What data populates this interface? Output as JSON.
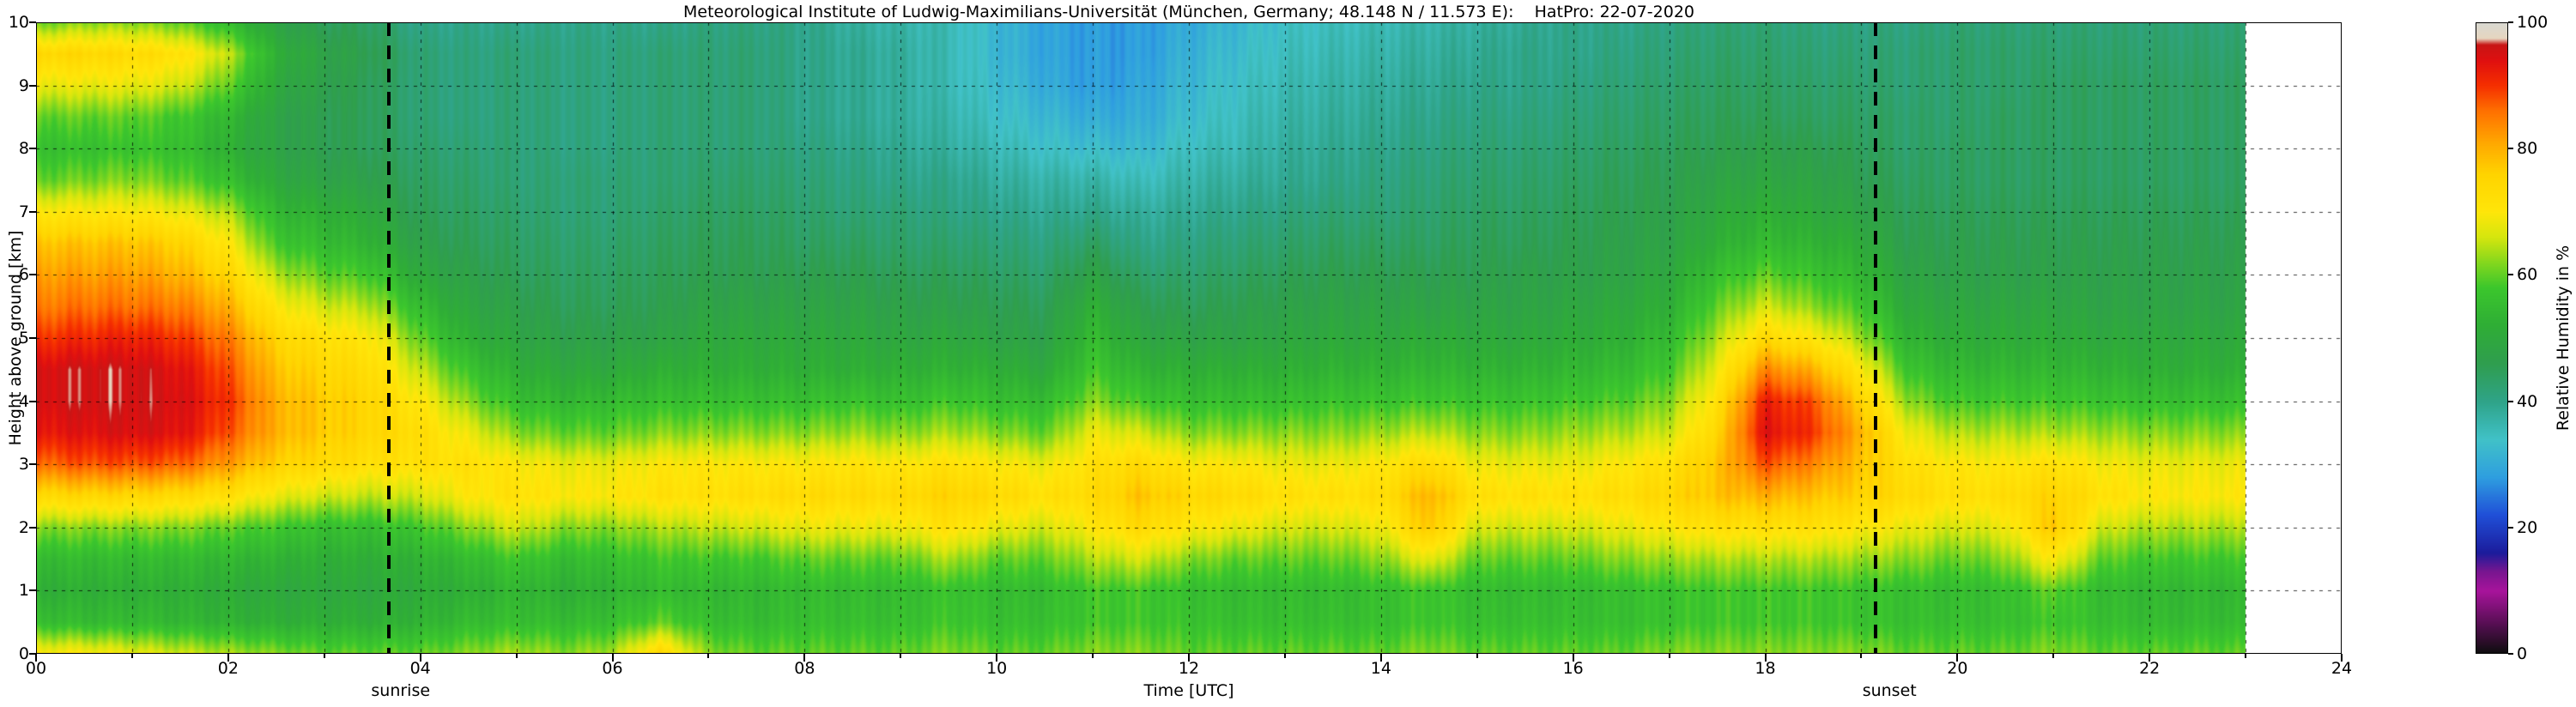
{
  "title": "Meteorological Institute of Ludwig-Maximilians-Universität (München, Germany; 48.148 N / 11.573 E):    HatPro: 22-07-2020",
  "chart_data": {
    "type": "heatmap",
    "title": "Meteorological Institute of Ludwig-Maximilians-Universität (München, Germany; 48.148 N / 11.573 E):    HatPro: 22-07-2020",
    "xlabel": "Time [UTC]",
    "ylabel": "Height above ground [km]",
    "colorbar_label": "Relative Humidity in %",
    "xlim": [
      0,
      24
    ],
    "ylim": [
      0,
      10
    ],
    "grid": {
      "x_step_hours": 1,
      "y_step_km": 1,
      "style": "dashed"
    },
    "x_tick_values": [
      0,
      2,
      4,
      6,
      8,
      10,
      12,
      14,
      16,
      18,
      20,
      22,
      24
    ],
    "x_tick_labels": [
      "00",
      "02",
      "04",
      "06",
      "08",
      "10",
      "12",
      "14",
      "16",
      "18",
      "20",
      "22",
      "24"
    ],
    "y_tick_values": [
      0,
      1,
      2,
      3,
      4,
      5,
      6,
      7,
      8,
      9,
      10
    ],
    "y_tick_labels": [
      "0",
      "1",
      "2",
      "3",
      "4",
      "5",
      "6",
      "7",
      "8",
      "9",
      "10"
    ],
    "colorbar_tick_values": [
      0,
      20,
      40,
      60,
      80,
      100
    ],
    "colorbar_tick_labels": [
      "0",
      "20",
      "40",
      "60",
      "80",
      "100"
    ],
    "annotations": [
      {
        "label": "sunrise",
        "x": 3.67
      },
      {
        "label": "sunset",
        "x": 19.15
      }
    ],
    "data_time_start": 0,
    "data_time_end": 23,
    "time_step_hours": 0.5,
    "height_step_km": 0.5,
    "value_unit": "percent_relative_humidity",
    "colormap": [
      [
        0.0,
        "#0d0d0d"
      ],
      [
        0.05,
        "#5a0f56"
      ],
      [
        0.1,
        "#a8149c"
      ],
      [
        0.13,
        "#7a1690"
      ],
      [
        0.16,
        "#1c1c9c"
      ],
      [
        0.22,
        "#2050d8"
      ],
      [
        0.28,
        "#2f9fe0"
      ],
      [
        0.34,
        "#41c2c8"
      ],
      [
        0.4,
        "#2fa489"
      ],
      [
        0.46,
        "#2f9e4f"
      ],
      [
        0.52,
        "#2fae36"
      ],
      [
        0.58,
        "#3cc72d"
      ],
      [
        0.62,
        "#85d81e"
      ],
      [
        0.66,
        "#d6e60e"
      ],
      [
        0.7,
        "#ffe60a"
      ],
      [
        0.76,
        "#ffd400"
      ],
      [
        0.81,
        "#ffa800"
      ],
      [
        0.86,
        "#ff7100"
      ],
      [
        0.9,
        "#f63000"
      ],
      [
        0.94,
        "#e01010"
      ],
      [
        0.965,
        "#c81616"
      ],
      [
        0.975,
        "#e7d6c0"
      ],
      [
        1.0,
        "#d9d9d2"
      ]
    ],
    "values_note": "columns every 0.5 h from 00:00 to 23:00 UTC; each column lists RH% at heights 0..10 km in 0.5 km steps (bottom to top)",
    "values": [
      [
        70,
        56,
        52,
        55,
        62,
        74,
        86,
        93,
        95,
        95,
        90,
        85,
        82,
        78,
        70,
        60,
        56,
        60,
        68,
        75,
        60
      ],
      [
        70,
        55,
        52,
        55,
        62,
        75,
        88,
        94,
        96,
        96,
        91,
        86,
        82,
        78,
        70,
        61,
        56,
        60,
        68,
        75,
        62
      ],
      [
        68,
        55,
        52,
        55,
        62,
        75,
        88,
        95,
        96,
        96,
        92,
        86,
        82,
        78,
        70,
        62,
        57,
        60,
        68,
        74,
        62
      ],
      [
        66,
        54,
        52,
        55,
        62,
        74,
        87,
        94,
        95,
        94,
        90,
        85,
        80,
        76,
        68,
        60,
        56,
        58,
        66,
        72,
        60
      ],
      [
        64,
        53,
        51,
        54,
        60,
        72,
        82,
        88,
        90,
        88,
        85,
        80,
        75,
        70,
        64,
        56,
        52,
        54,
        60,
        65,
        55
      ],
      [
        62,
        52,
        50,
        53,
        58,
        68,
        76,
        80,
        80,
        78,
        75,
        70,
        64,
        58,
        54,
        50,
        48,
        48,
        50,
        52,
        48
      ],
      [
        60,
        52,
        50,
        52,
        56,
        66,
        74,
        77,
        77,
        75,
        72,
        66,
        60,
        55,
        52,
        48,
        46,
        46,
        47,
        48,
        45
      ],
      [
        60,
        52,
        50,
        52,
        56,
        65,
        72,
        75,
        75,
        73,
        70,
        64,
        58,
        53,
        50,
        47,
        45,
        45,
        45,
        46,
        44
      ],
      [
        60,
        53,
        51,
        53,
        58,
        66,
        72,
        73,
        70,
        65,
        60,
        55,
        50,
        47,
        45,
        44,
        43,
        42,
        42,
        42,
        40
      ],
      [
        62,
        55,
        52,
        55,
        62,
        70,
        72,
        68,
        62,
        57,
        52,
        49,
        47,
        45,
        44,
        43,
        42,
        41,
        41,
        41,
        40
      ],
      [
        64,
        56,
        54,
        58,
        66,
        72,
        70,
        62,
        56,
        52,
        49,
        47,
        45,
        44,
        43,
        42,
        42,
        42,
        42,
        42,
        40
      ],
      [
        62,
        55,
        52,
        55,
        62,
        70,
        68,
        60,
        54,
        50,
        47,
        45,
        44,
        43,
        42,
        42,
        41,
        41,
        41,
        41,
        40
      ],
      [
        64,
        56,
        53,
        56,
        62,
        70,
        68,
        60,
        55,
        50,
        47,
        45,
        44,
        43,
        42,
        42,
        41,
        41,
        41,
        41,
        40
      ],
      [
        75,
        60,
        55,
        58,
        64,
        72,
        70,
        62,
        56,
        52,
        48,
        46,
        45,
        44,
        43,
        42,
        42,
        42,
        42,
        42,
        40
      ],
      [
        62,
        56,
        54,
        58,
        65,
        72,
        70,
        62,
        56,
        52,
        50,
        48,
        46,
        45,
        44,
        43,
        42,
        42,
        42,
        42,
        41
      ],
      [
        60,
        55,
        54,
        58,
        66,
        73,
        70,
        62,
        56,
        52,
        50,
        48,
        46,
        45,
        44,
        43,
        42,
        42,
        42,
        42,
        41
      ],
      [
        60,
        56,
        55,
        60,
        68,
        74,
        70,
        62,
        56,
        52,
        50,
        48,
        46,
        44,
        43,
        42,
        41,
        40,
        40,
        40,
        40
      ],
      [
        60,
        56,
        55,
        60,
        68,
        74,
        71,
        63,
        57,
        52,
        50,
        48,
        46,
        44,
        42,
        41,
        40,
        39,
        39,
        39,
        38
      ],
      [
        60,
        56,
        55,
        60,
        68,
        74,
        70,
        62,
        56,
        52,
        49,
        47,
        45,
        43,
        42,
        40,
        39,
        38,
        38,
        38,
        37
      ],
      [
        62,
        58,
        57,
        64,
        72,
        76,
        72,
        64,
        58,
        53,
        50,
        47,
        45,
        43,
        41,
        40,
        38,
        37,
        36,
        36,
        36
      ],
      [
        60,
        56,
        55,
        60,
        68,
        74,
        70,
        62,
        56,
        52,
        48,
        46,
        44,
        42,
        40,
        38,
        36,
        34,
        33,
        32,
        32
      ],
      [
        60,
        56,
        55,
        60,
        66,
        72,
        68,
        60,
        55,
        50,
        47,
        45,
        43,
        41,
        39,
        37,
        34,
        32,
        30,
        29,
        29
      ],
      [
        62,
        58,
        58,
        64,
        70,
        74,
        72,
        68,
        62,
        58,
        55,
        52,
        48,
        44,
        40,
        37,
        33,
        30,
        28,
        28,
        28
      ],
      [
        62,
        58,
        58,
        66,
        74,
        78,
        74,
        66,
        58,
        53,
        49,
        46,
        43,
        40,
        38,
        35,
        32,
        30,
        29,
        28,
        28
      ],
      [
        60,
        57,
        56,
        62,
        70,
        75,
        70,
        62,
        56,
        52,
        48,
        45,
        43,
        41,
        39,
        37,
        35,
        33,
        32,
        31,
        30
      ],
      [
        60,
        56,
        55,
        60,
        68,
        74,
        70,
        62,
        56,
        52,
        48,
        46,
        44,
        42,
        40,
        38,
        36,
        35,
        34,
        33,
        32
      ],
      [
        60,
        56,
        55,
        60,
        66,
        72,
        68,
        62,
        56,
        52,
        49,
        47,
        45,
        43,
        41,
        39,
        38,
        37,
        36,
        35,
        34
      ],
      [
        60,
        56,
        55,
        60,
        66,
        72,
        68,
        62,
        57,
        53,
        50,
        48,
        46,
        44,
        42,
        40,
        39,
        38,
        37,
        36,
        35
      ],
      [
        60,
        56,
        56,
        62,
        68,
        73,
        70,
        63,
        57,
        53,
        50,
        48,
        46,
        44,
        42,
        41,
        40,
        39,
        38,
        37,
        36
      ],
      [
        62,
        58,
        58,
        68,
        78,
        80,
        74,
        65,
        58,
        54,
        51,
        48,
        46,
        44,
        43,
        42,
        41,
        40,
        39,
        38,
        37
      ],
      [
        60,
        56,
        55,
        60,
        66,
        72,
        68,
        62,
        57,
        53,
        50,
        48,
        46,
        45,
        44,
        43,
        42,
        41,
        40,
        39,
        38
      ],
      [
        60,
        56,
        55,
        60,
        66,
        72,
        68,
        62,
        57,
        53,
        50,
        48,
        47,
        45,
        44,
        43,
        42,
        41,
        40,
        40,
        39
      ],
      [
        60,
        56,
        55,
        60,
        66,
        72,
        68,
        63,
        58,
        54,
        51,
        49,
        47,
        46,
        45,
        44,
        43,
        42,
        41,
        40,
        40
      ],
      [
        60,
        56,
        56,
        62,
        68,
        73,
        70,
        64,
        59,
        55,
        52,
        50,
        48,
        47,
        46,
        45,
        44,
        43,
        42,
        41,
        40
      ],
      [
        62,
        57,
        57,
        63,
        70,
        75,
        72,
        66,
        62,
        58,
        55,
        52,
        50,
        48,
        47,
        46,
        45,
        44,
        43,
        42,
        41
      ],
      [
        62,
        58,
        58,
        64,
        72,
        78,
        78,
        75,
        72,
        68,
        64,
        60,
        56,
        52,
        50,
        48,
        46,
        45,
        44,
        43,
        42
      ],
      [
        62,
        58,
        58,
        64,
        72,
        80,
        88,
        94,
        92,
        84,
        74,
        66,
        60,
        55,
        52,
        49,
        47,
        45,
        44,
        43,
        42
      ],
      [
        62,
        58,
        58,
        64,
        72,
        78,
        84,
        90,
        88,
        80,
        70,
        62,
        57,
        53,
        50,
        48,
        46,
        44,
        43,
        42,
        41
      ],
      [
        62,
        57,
        57,
        63,
        70,
        76,
        78,
        80,
        76,
        70,
        63,
        58,
        54,
        51,
        48,
        46,
        45,
        44,
        43,
        42,
        41
      ],
      [
        60,
        56,
        56,
        62,
        68,
        74,
        72,
        68,
        62,
        57,
        53,
        50,
        48,
        46,
        45,
        44,
        43,
        43,
        42,
        42,
        41
      ],
      [
        60,
        56,
        55,
        60,
        66,
        72,
        70,
        64,
        58,
        54,
        51,
        49,
        47,
        46,
        45,
        44,
        44,
        43,
        43,
        43,
        42
      ],
      [
        60,
        56,
        56,
        62,
        68,
        73,
        70,
        64,
        58,
        54,
        51,
        49,
        47,
        46,
        45,
        44,
        44,
        44,
        43,
        43,
        42
      ],
      [
        62,
        58,
        60,
        70,
        78,
        76,
        72,
        64,
        58,
        54,
        51,
        49,
        47,
        46,
        45,
        44,
        44,
        44,
        44,
        43,
        42
      ],
      [
        60,
        56,
        55,
        60,
        66,
        72,
        69,
        63,
        57,
        53,
        50,
        48,
        47,
        46,
        45,
        44,
        44,
        44,
        44,
        43,
        42
      ],
      [
        60,
        55,
        54,
        58,
        64,
        70,
        68,
        62,
        56,
        52,
        50,
        48,
        47,
        46,
        45,
        44,
        44,
        44,
        44,
        43,
        42
      ],
      [
        60,
        55,
        54,
        58,
        64,
        70,
        68,
        62,
        56,
        52,
        50,
        48,
        47,
        46,
        45,
        44,
        44,
        44,
        44,
        43,
        42
      ],
      [
        60,
        55,
        54,
        58,
        64,
        70,
        68,
        62,
        56,
        52,
        50,
        48,
        47,
        46,
        45,
        44,
        44,
        44,
        44,
        43,
        42
      ]
    ]
  }
}
